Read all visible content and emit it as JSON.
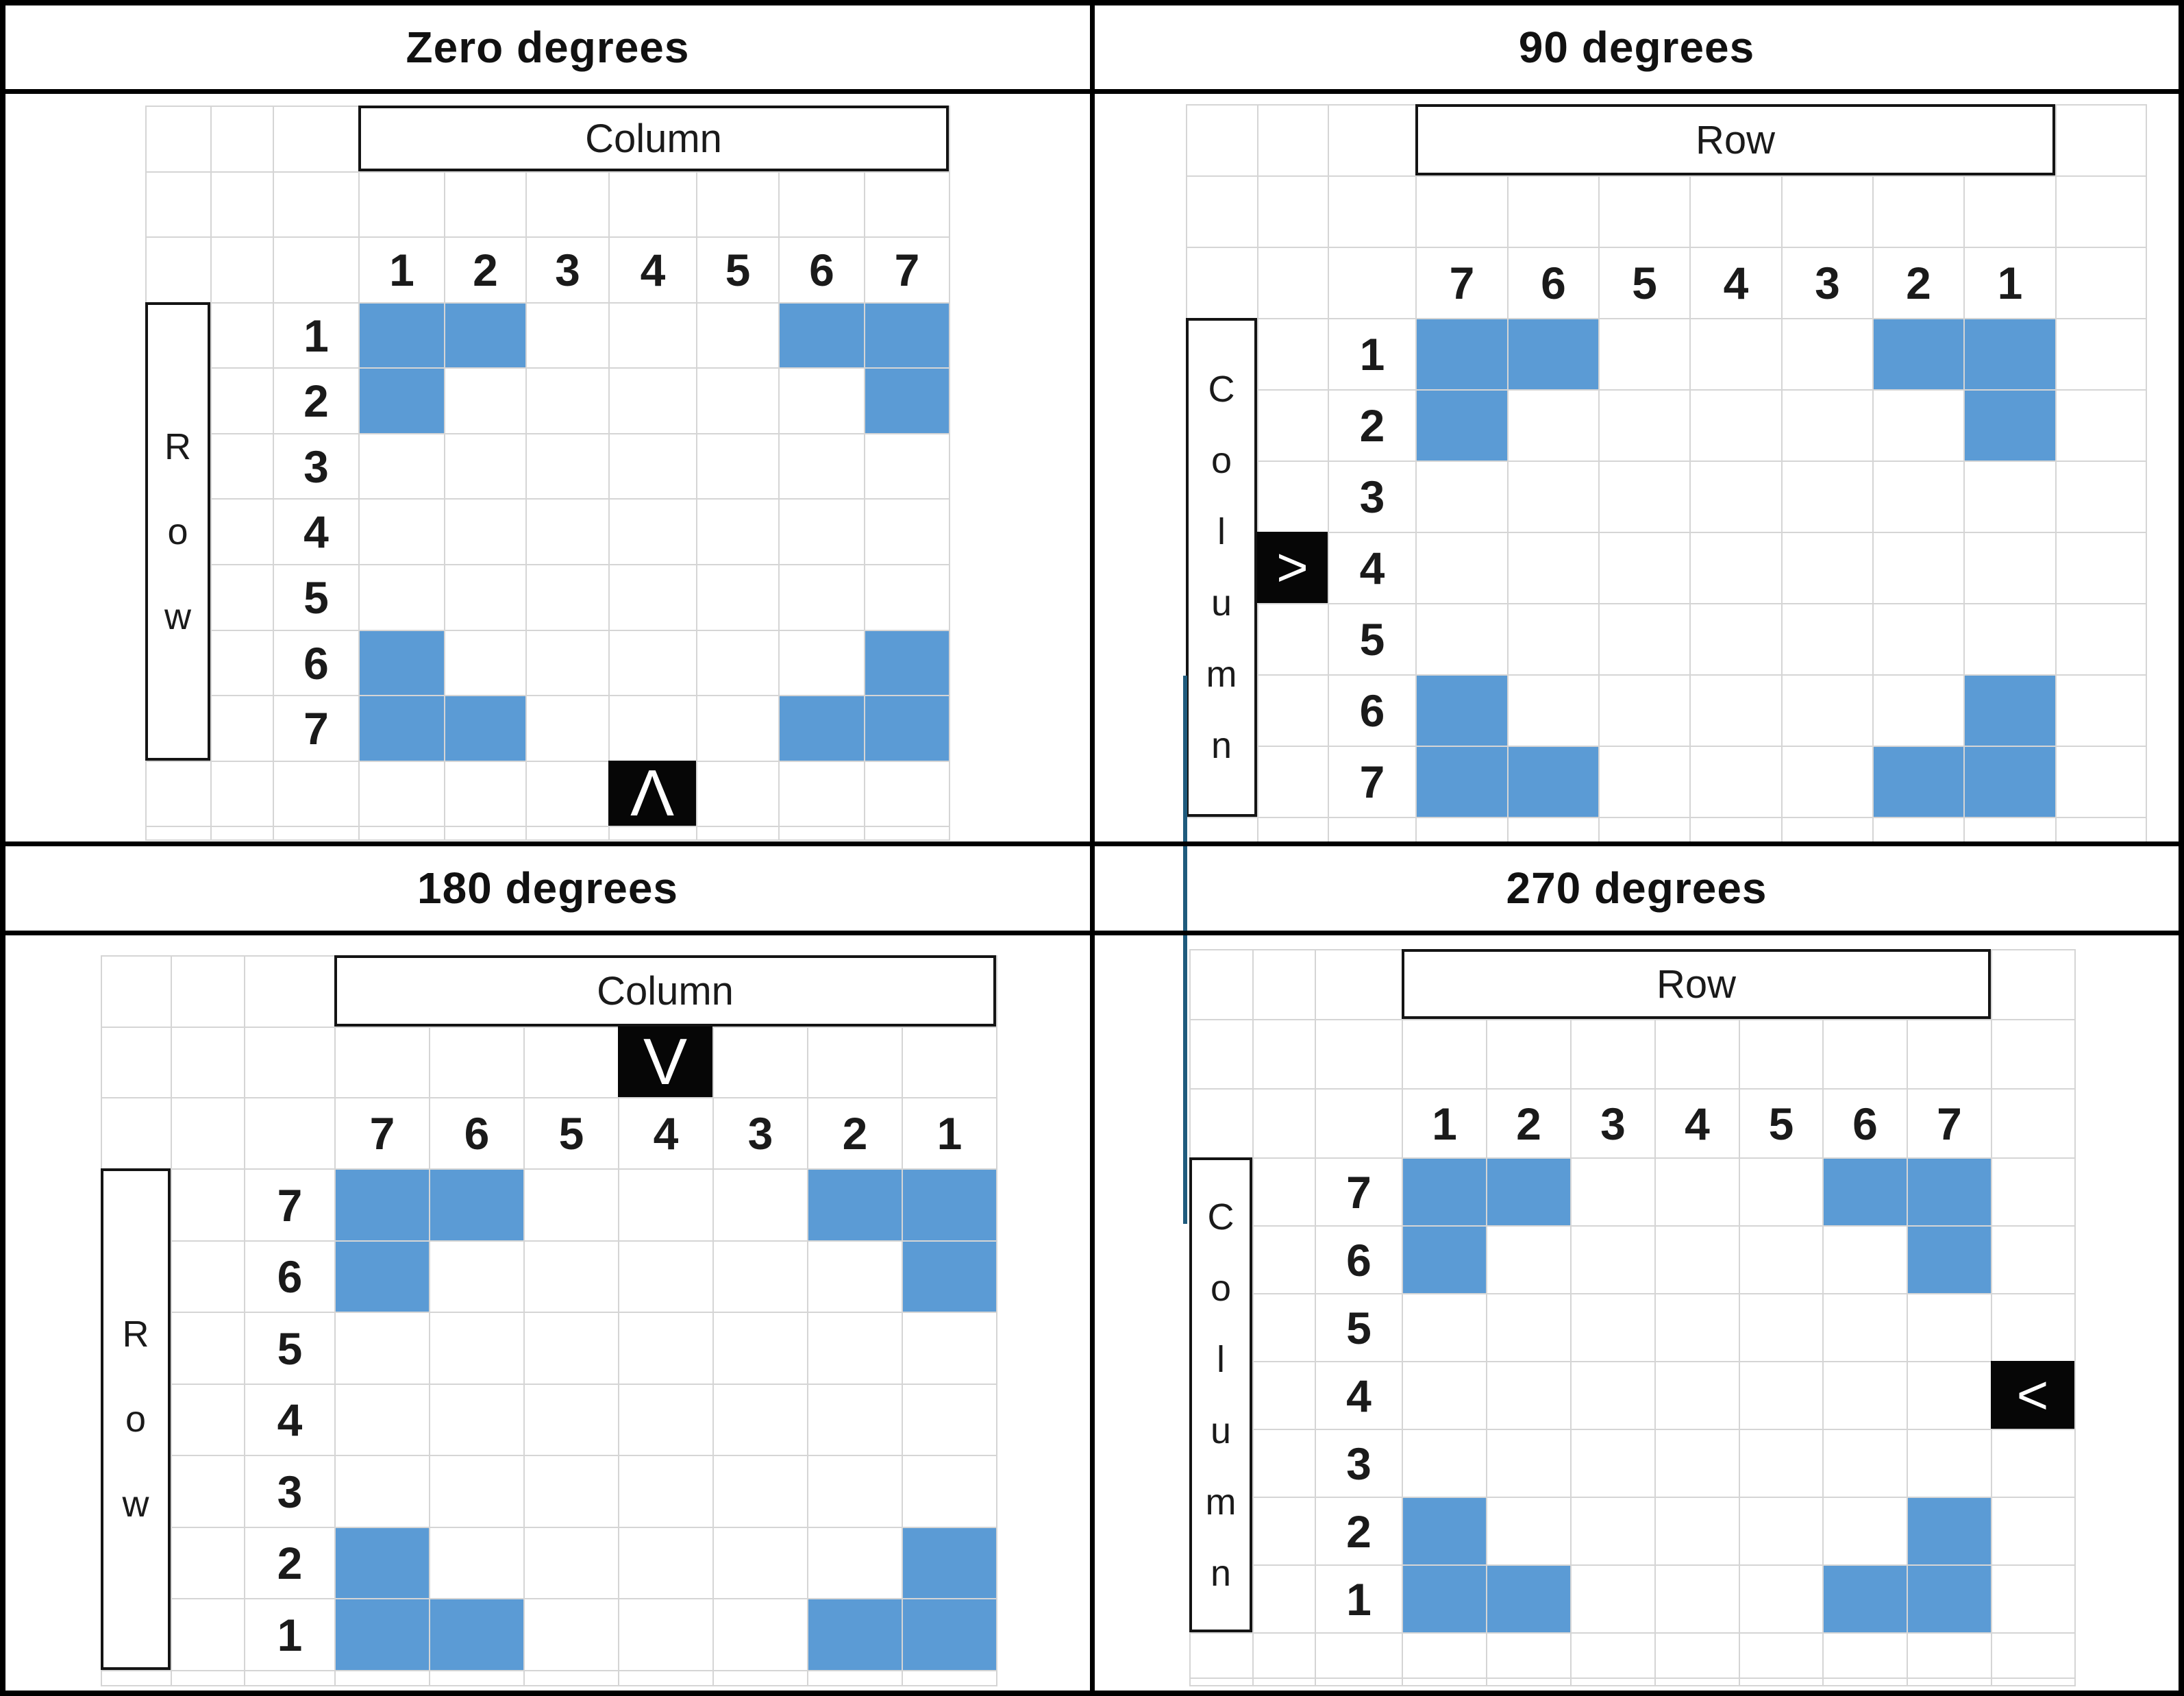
{
  "figure": {
    "type": "rotation-diagram",
    "grid_size": 7
  },
  "colors": {
    "pattern_blue": "#5B9BD5",
    "gridline": "#D5D5D5",
    "box_black": "#060606",
    "text": "#1A1A1A",
    "connector": "#1F5B7D"
  },
  "connector_line": {
    "color": "#1F5B7D"
  },
  "panels": [
    {
      "title": "Zero degrees",
      "top_header_label": "Column",
      "side_header_label": "Row",
      "side_letters": [
        "R",
        "o",
        "w"
      ],
      "col_labels": [
        "1",
        "2",
        "3",
        "4",
        "5",
        "6",
        "7"
      ],
      "row_labels": [
        "1",
        "2",
        "3",
        "4",
        "5",
        "6",
        "7"
      ],
      "arrow": {
        "glyph": "Λ",
        "side": "bottom",
        "at_label": "4"
      },
      "blue_cells": [
        [
          1,
          1
        ],
        [
          1,
          2
        ],
        [
          1,
          6
        ],
        [
          1,
          7
        ],
        [
          2,
          1
        ],
        [
          2,
          7
        ],
        [
          6,
          1
        ],
        [
          6,
          7
        ],
        [
          7,
          1
        ],
        [
          7,
          2
        ],
        [
          7,
          6
        ],
        [
          7,
          7
        ]
      ]
    },
    {
      "title": "90 degrees",
      "top_header_label": "Row",
      "side_header_label": "Column",
      "side_letters": [
        "C",
        "o",
        "l",
        "u",
        "m",
        "n"
      ],
      "col_labels": [
        "7",
        "6",
        "5",
        "4",
        "3",
        "2",
        "1"
      ],
      "row_labels": [
        "1",
        "2",
        "3",
        "4",
        "5",
        "6",
        "7"
      ],
      "arrow": {
        "glyph": ">",
        "side": "left",
        "at_label": "4"
      },
      "blue_cells": [
        [
          1,
          1
        ],
        [
          1,
          2
        ],
        [
          1,
          6
        ],
        [
          1,
          7
        ],
        [
          2,
          1
        ],
        [
          2,
          7
        ],
        [
          6,
          1
        ],
        [
          6,
          7
        ],
        [
          7,
          1
        ],
        [
          7,
          2
        ],
        [
          7,
          6
        ],
        [
          7,
          7
        ]
      ]
    },
    {
      "title": "180 degrees",
      "top_header_label": "Column",
      "side_header_label": "Row",
      "side_letters": [
        "R",
        "o",
        "w"
      ],
      "col_labels": [
        "7",
        "6",
        "5",
        "4",
        "3",
        "2",
        "1"
      ],
      "row_labels": [
        "7",
        "6",
        "5",
        "4",
        "3",
        "2",
        "1"
      ],
      "arrow": {
        "glyph": "V",
        "side": "top",
        "at_label": "4"
      },
      "blue_cells": [
        [
          1,
          1
        ],
        [
          1,
          2
        ],
        [
          1,
          6
        ],
        [
          1,
          7
        ],
        [
          2,
          1
        ],
        [
          2,
          7
        ],
        [
          6,
          1
        ],
        [
          6,
          7
        ],
        [
          7,
          1
        ],
        [
          7,
          2
        ],
        [
          7,
          6
        ],
        [
          7,
          7
        ]
      ]
    },
    {
      "title": "270 degrees",
      "top_header_label": "Row",
      "side_header_label": "Column",
      "side_letters": [
        "C",
        "o",
        "l",
        "u",
        "m",
        "n"
      ],
      "col_labels": [
        "1",
        "2",
        "3",
        "4",
        "5",
        "6",
        "7"
      ],
      "row_labels": [
        "7",
        "6",
        "5",
        "4",
        "3",
        "2",
        "1"
      ],
      "arrow": {
        "glyph": "<",
        "side": "right",
        "at_label": "4"
      },
      "blue_cells": [
        [
          1,
          1
        ],
        [
          1,
          2
        ],
        [
          1,
          6
        ],
        [
          1,
          7
        ],
        [
          2,
          1
        ],
        [
          2,
          7
        ],
        [
          6,
          1
        ],
        [
          6,
          7
        ],
        [
          7,
          1
        ],
        [
          7,
          2
        ],
        [
          7,
          6
        ],
        [
          7,
          7
        ]
      ]
    }
  ]
}
